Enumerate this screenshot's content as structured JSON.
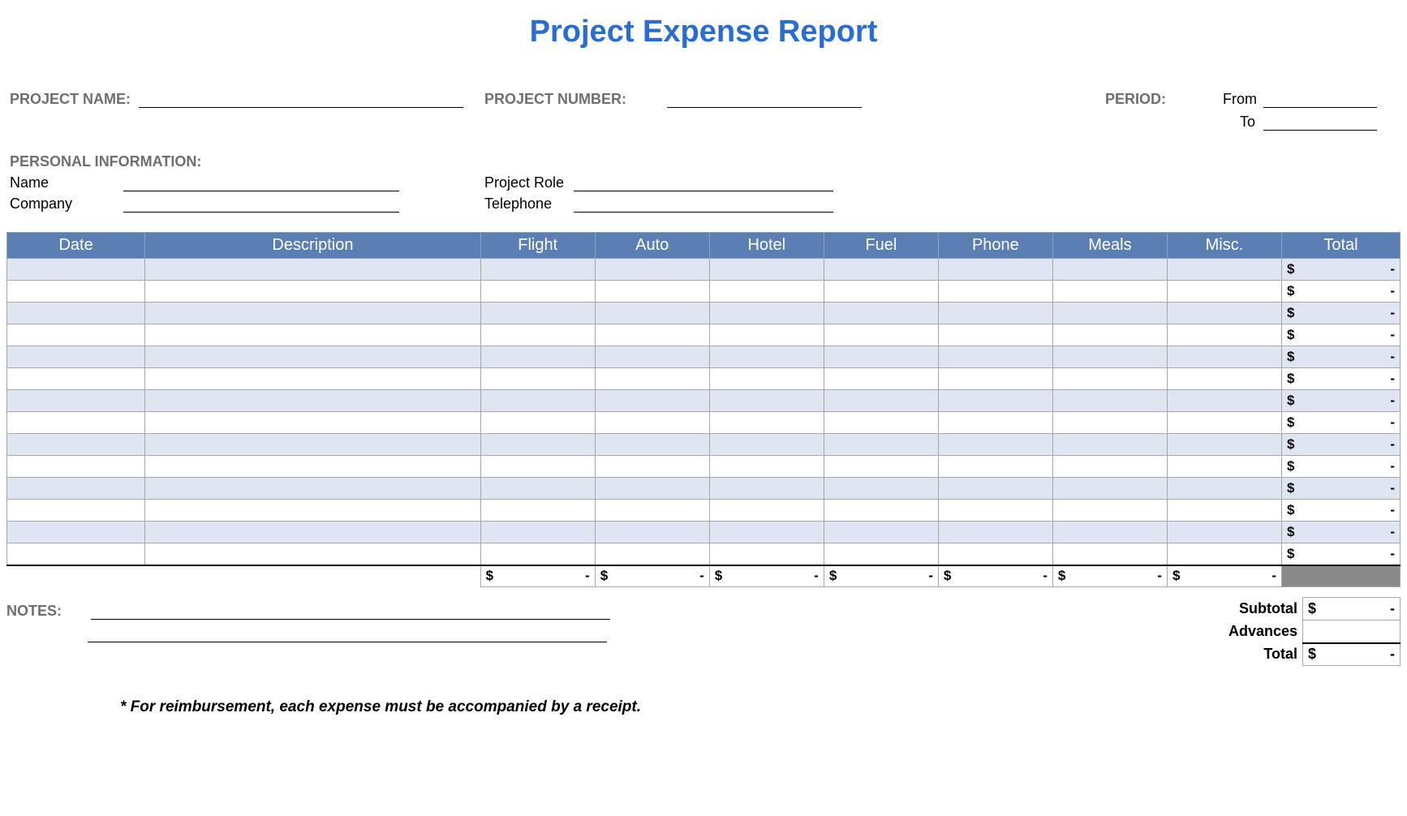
{
  "title": "Project Expense Report",
  "colors": {
    "title": "#2a6dd1",
    "header_bg": "#5b7fb2",
    "header_text": "#ffffff",
    "row_alt_bg": "#dfe6f1",
    "row_bg": "#ffffff",
    "grid_line": "#a7a7a7",
    "label_gray": "#6f6f6f",
    "grand_blank": "#8a8a8a"
  },
  "meta": {
    "project_name_label": "PROJECT NAME:",
    "project_number_label": "PROJECT NUMBER:",
    "period_label": "PERIOD:",
    "period_from_label": "From",
    "period_to_label": "To",
    "personal_info_label": "PERSONAL INFORMATION:",
    "name_label": "Name",
    "company_label": "Company",
    "project_role_label": "Project Role",
    "telephone_label": "Telephone",
    "project_name_value": "",
    "project_number_value": "",
    "period_from_value": "",
    "period_to_value": "",
    "name_value": "",
    "company_value": "",
    "project_role_value": "",
    "telephone_value": ""
  },
  "table": {
    "columns": [
      "Date",
      "Description",
      "Flight",
      "Auto",
      "Hotel",
      "Fuel",
      "Phone",
      "Meals",
      "Misc.",
      "Total"
    ],
    "currency_symbol": "$",
    "empty_value": "-",
    "row_count": 14,
    "column_totals_symbol": "$",
    "column_totals_value": "-"
  },
  "summary": {
    "subtotal_label": "Subtotal",
    "advances_label": "Advances",
    "total_label": "Total",
    "subtotal_value": "-",
    "advances_value": "",
    "total_value": "-"
  },
  "notes_label": "NOTES:",
  "footnote": "* For reimbursement, each expense must be accompanied by a receipt."
}
